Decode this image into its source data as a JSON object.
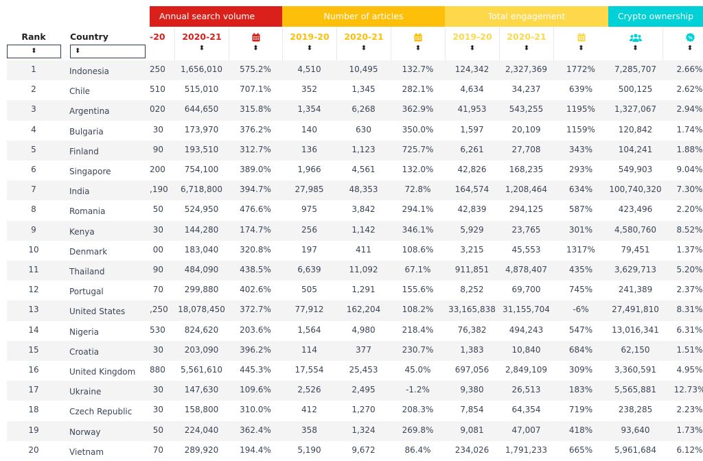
{
  "colors": {
    "search": "#d9201a",
    "articles": "#fdbf0a",
    "engagement": "#fdd84a",
    "crypto": "#00d1d6",
    "text": "#3a4457"
  },
  "groups": {
    "search": "Annual search volume",
    "articles": "Number of articles",
    "engagement": "Total engagement",
    "crypto": "Crypto ownership"
  },
  "headers": {
    "rank": "Rank",
    "country": "Country",
    "search_prev_clipped": "-20",
    "search_2021": "2020-21",
    "search_change_icon": "calendar-icon",
    "articles_2019": "2019-20",
    "articles_2021": "2020-21",
    "articles_change_icon": "calendar-icon",
    "eng_2019": "2019-20",
    "eng_2021": "2020-21",
    "eng_change_icon": "calendar-icon",
    "owners_icon": "users-icon",
    "share_icon": "percent-badge-icon",
    "sort_glyph": "⬍"
  },
  "rows": [
    [
      "1",
      "Indonesia",
      "250",
      "1,656,010",
      "575.2%",
      "4,510",
      "10,495",
      "132.7%",
      "124,342",
      "2,327,369",
      "1772%",
      "7,285,707",
      "2.66%"
    ],
    [
      "2",
      "Chile",
      "510",
      "515,010",
      "707.1%",
      "352",
      "1,345",
      "282.1%",
      "4,634",
      "34,237",
      "639%",
      "500,125",
      "2.62%"
    ],
    [
      "3",
      "Argentina",
      "020",
      "644,650",
      "315.8%",
      "1,354",
      "6,268",
      "362.9%",
      "41,953",
      "543,255",
      "1195%",
      "1,327,067",
      "2.94%"
    ],
    [
      "4",
      "Bulgaria",
      "30",
      "173,970",
      "376.2%",
      "140",
      "630",
      "350.0%",
      "1,597",
      "20,109",
      "1159%",
      "120,842",
      "1.74%"
    ],
    [
      "5",
      "Finland",
      "90",
      "193,510",
      "312.7%",
      "136",
      "1,123",
      "725.7%",
      "6,261",
      "27,708",
      "343%",
      "104,241",
      "1.88%"
    ],
    [
      "6",
      "Singapore",
      "200",
      "754,100",
      "389.0%",
      "1,966",
      "4,561",
      "132.0%",
      "42,826",
      "168,235",
      "293%",
      "549,903",
      "9.04%"
    ],
    [
      "7",
      "India",
      ",190",
      "6,718,800",
      "394.7%",
      "27,985",
      "48,353",
      "72.8%",
      "164,574",
      "1,208,464",
      "634%",
      "100,740,320",
      "7.30%"
    ],
    [
      "8",
      "Romania",
      "50",
      "524,950",
      "476.6%",
      "975",
      "3,842",
      "294.1%",
      "42,839",
      "294,125",
      "587%",
      "423,496",
      "2.20%"
    ],
    [
      "9",
      "Kenya",
      "30",
      "144,280",
      "174.7%",
      "256",
      "1,142",
      "346.1%",
      "5,929",
      "23,765",
      "301%",
      "4,580,760",
      "8.52%"
    ],
    [
      "10",
      "Denmark",
      "00",
      "183,040",
      "320.8%",
      "197",
      "411",
      "108.6%",
      "3,215",
      "45,553",
      "1317%",
      "79,451",
      "1.37%"
    ],
    [
      "11",
      "Thailand",
      "90",
      "484,090",
      "438.5%",
      "6,639",
      "11,092",
      "67.1%",
      "911,851",
      "4,878,407",
      "435%",
      "3,629,713",
      "5.20%"
    ],
    [
      "12",
      "Portugal",
      "70",
      "299,880",
      "402.6%",
      "505",
      "1,291",
      "155.6%",
      "8,252",
      "69,700",
      "745%",
      "241,389",
      "2.37%"
    ],
    [
      "13",
      "United States",
      ",250",
      "18,078,450",
      "372.7%",
      "77,912",
      "162,204",
      "108.2%",
      "33,165,838",
      "31,155,704",
      "-6%",
      "27,491,810",
      "8.31%"
    ],
    [
      "14",
      "Nigeria",
      "530",
      "824,620",
      "203.6%",
      "1,564",
      "4,980",
      "218.4%",
      "76,382",
      "494,243",
      "547%",
      "13,016,341",
      "6.31%"
    ],
    [
      "15",
      "Croatia",
      "30",
      "203,090",
      "396.2%",
      "114",
      "377",
      "230.7%",
      "1,383",
      "10,840",
      "684%",
      "62,150",
      "1.51%"
    ],
    [
      "16",
      "United Kingdom",
      "880",
      "5,561,610",
      "445.3%",
      "17,554",
      "25,453",
      "45.0%",
      "697,056",
      "2,849,109",
      "309%",
      "3,360,591",
      "4.95%"
    ],
    [
      "17",
      "Ukraine",
      "30",
      "147,630",
      "109.6%",
      "2,526",
      "2,495",
      "-1.2%",
      "9,380",
      "26,513",
      "183%",
      "5,565,881",
      "12.73%"
    ],
    [
      "18",
      "Czech Republic",
      "30",
      "158,800",
      "310.0%",
      "412",
      "1,270",
      "208.3%",
      "7,854",
      "64,354",
      "719%",
      "238,285",
      "2.23%"
    ],
    [
      "19",
      "Norway",
      "50",
      "224,040",
      "362.4%",
      "358",
      "1,324",
      "269.8%",
      "9,081",
      "47,007",
      "418%",
      "93,640",
      "1.73%"
    ],
    [
      "20",
      "Vietnam",
      "70",
      "289,920",
      "194.4%",
      "5,190",
      "9,672",
      "86.4%",
      "234,026",
      "1,791,233",
      "665%",
      "5,961,684",
      "6.12%"
    ]
  ]
}
